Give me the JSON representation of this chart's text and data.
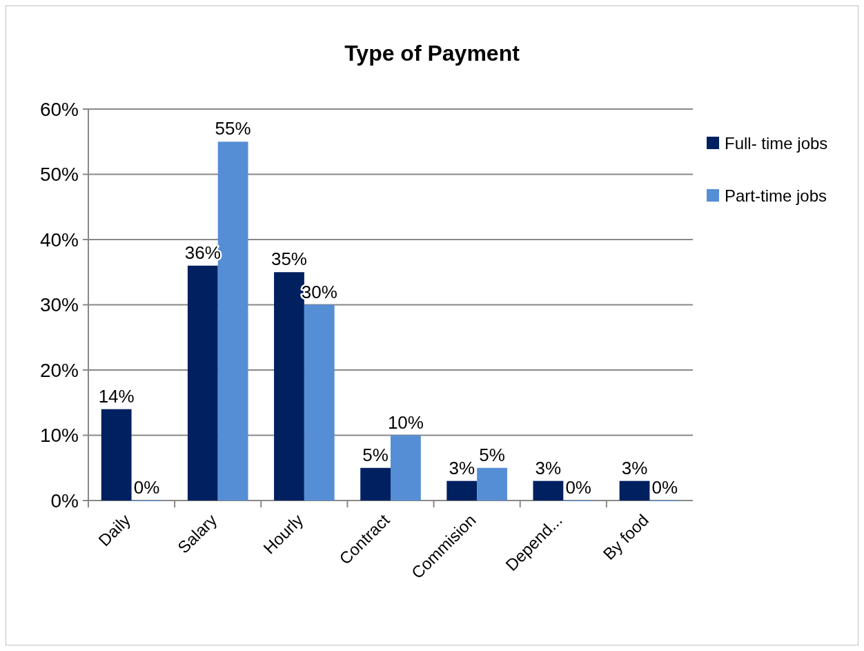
{
  "chart_data": {
    "type": "bar",
    "title": "Type of Payment",
    "categories": [
      "Daily",
      "Salary",
      "Hourly",
      "Contract",
      "Commision",
      "Depend...",
      "By food"
    ],
    "series": [
      {
        "name": "Full- time jobs",
        "color": "#002060",
        "values": [
          14,
          36,
          35,
          5,
          3,
          3,
          3
        ],
        "value_labels": [
          "14%",
          "36%",
          "35%",
          "5%",
          "3%",
          "3%",
          "3%"
        ]
      },
      {
        "name": "Part-time jobs",
        "color": "#558ed5",
        "values": [
          0,
          55,
          30,
          10,
          5,
          0,
          0
        ],
        "value_labels": [
          "0%",
          "55%",
          "30%",
          "10%",
          "5%",
          "0%",
          "0%"
        ]
      }
    ],
    "ylim": [
      0,
      60
    ],
    "yticks": [
      {
        "value": 0,
        "label": "0%"
      },
      {
        "value": 10,
        "label": "10%"
      },
      {
        "value": 20,
        "label": "20%"
      },
      {
        "value": 30,
        "label": "30%"
      },
      {
        "value": 40,
        "label": "40%"
      },
      {
        "value": 50,
        "label": "50%"
      },
      {
        "value": 60,
        "label": "60%"
      }
    ],
    "grid": "y",
    "legend": "right"
  }
}
